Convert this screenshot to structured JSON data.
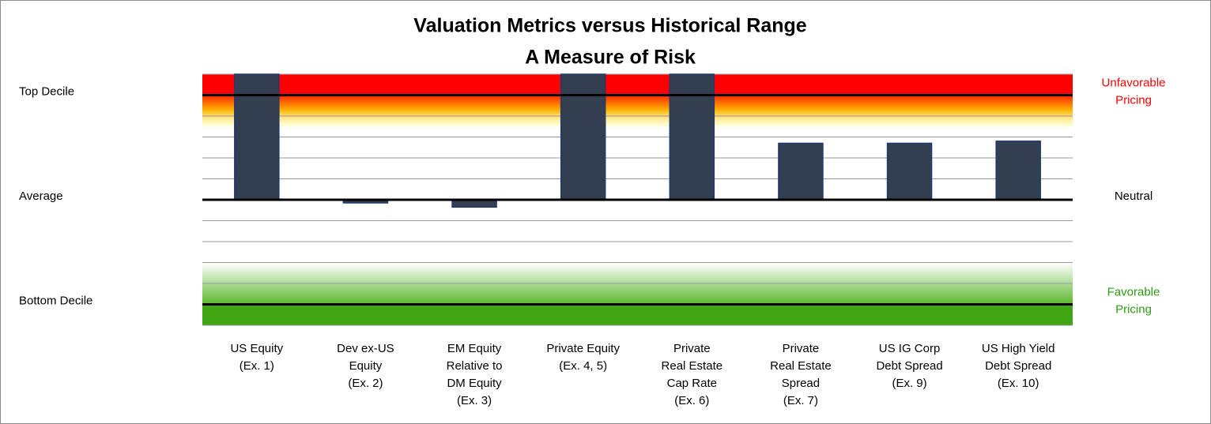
{
  "chart_data": {
    "type": "bar",
    "title": "Valuation Metrics versus Historical Range",
    "subtitle": "A Measure of Risk",
    "categories": [
      [
        "US Equity",
        "(Ex. 1)"
      ],
      [
        "Dev ex-US",
        "Equity",
        "(Ex. 2)"
      ],
      [
        "EM Equity",
        "Relative to",
        "DM Equity",
        "(Ex. 3)"
      ],
      [
        "Private Equity",
        "(Ex. 4, 5)"
      ],
      [
        "Private",
        "Real Estate",
        "Cap Rate",
        "(Ex. 6)"
      ],
      [
        "Private",
        "Real Estate",
        "Spread",
        "(Ex. 7)"
      ],
      [
        "US IG Corp",
        "Debt Spread",
        "(Ex. 9)"
      ],
      [
        "US High Yield",
        "Debt Spread",
        "(Ex. 10)"
      ]
    ],
    "values": [
      6,
      -0.15,
      -0.35,
      6,
      6,
      2.7,
      2.7,
      2.8
    ],
    "color": "#333f50",
    "ylim": [
      -6,
      6
    ],
    "yticks": [
      {
        "value": 5,
        "label": "Top Decile"
      },
      {
        "value": 0,
        "label": "Average"
      },
      {
        "value": -5,
        "label": "Bottom Decile"
      }
    ],
    "y2lim": [
      -6,
      6
    ],
    "y2ticks": [
      {
        "value": 5,
        "label": [
          "Unfavorable",
          "Pricing"
        ]
      },
      {
        "value": 0,
        "label": [
          "Neutral"
        ]
      },
      {
        "value": -5,
        "label": [
          "Favorable",
          "Pricing"
        ]
      }
    ],
    "minor_yticks": [
      -6,
      -5,
      -4,
      -3,
      -2,
      -1,
      0,
      1,
      2,
      3,
      4,
      5,
      6
    ],
    "grid": true
  }
}
